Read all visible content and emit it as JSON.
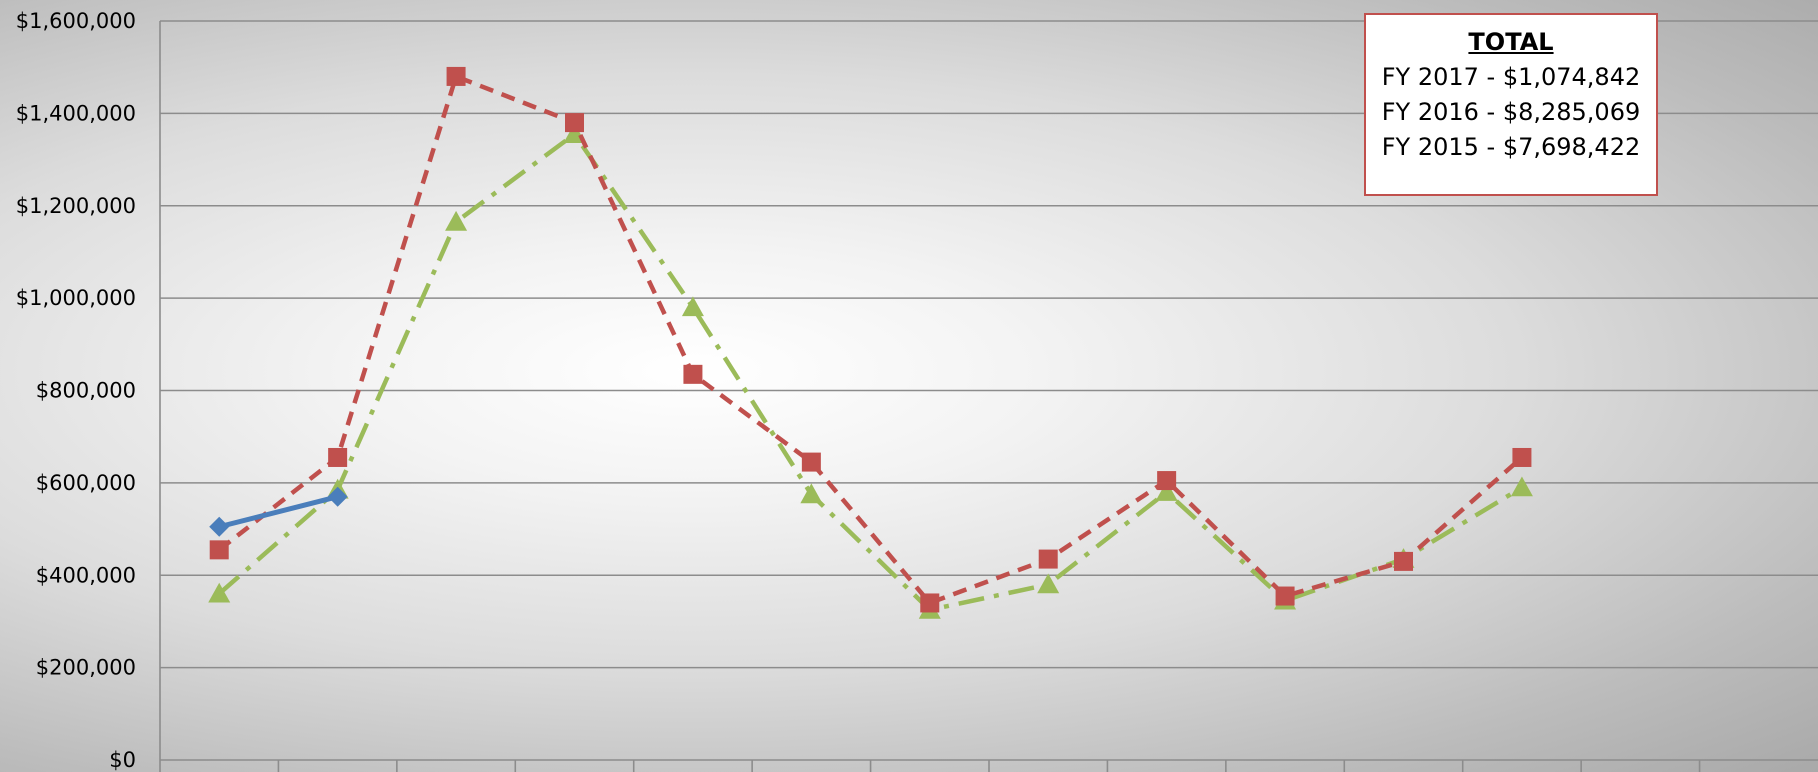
{
  "chart_data": {
    "type": "line",
    "ylim": [
      0,
      1600000
    ],
    "y_tick_labels": [
      "$0",
      "$200,000",
      "$400,000",
      "$600,000",
      "$800,000",
      "$1,000,000",
      "$1,200,000",
      "$1,400,000",
      "$1,600,000"
    ],
    "y_tick_values": [
      0,
      200000,
      400000,
      600000,
      800000,
      1000000,
      1200000,
      1400000,
      1600000
    ],
    "category_count": 12,
    "grid": "horizontal",
    "series": [
      {
        "key": "fy2017",
        "color": "#4a7ebb",
        "marker": "diamond",
        "line_style": "solid",
        "values": [
          505000,
          570000
        ]
      },
      {
        "key": "fy2016",
        "color": "#c0504d",
        "marker": "square",
        "line_style": "dash",
        "values": [
          455000,
          655000,
          1480000,
          1380000,
          835000,
          645000,
          340000,
          435000,
          605000,
          355000,
          430000,
          655000
        ]
      },
      {
        "key": "fy2015",
        "color": "#9bbb59",
        "marker": "triangle",
        "line_style": "dash-dot",
        "values": [
          360000,
          585000,
          1165000,
          1355000,
          980000,
          575000,
          325000,
          380000,
          580000,
          345000,
          435000,
          590000
        ]
      }
    ],
    "annotation": {
      "title": "TOTAL",
      "lines": [
        "FY 2017 - $1,074,842",
        "FY 2016 - $8,285,069",
        "FY 2015 - $7,698,422"
      ],
      "border_color": "#c0504d",
      "placement": "top-right"
    }
  }
}
